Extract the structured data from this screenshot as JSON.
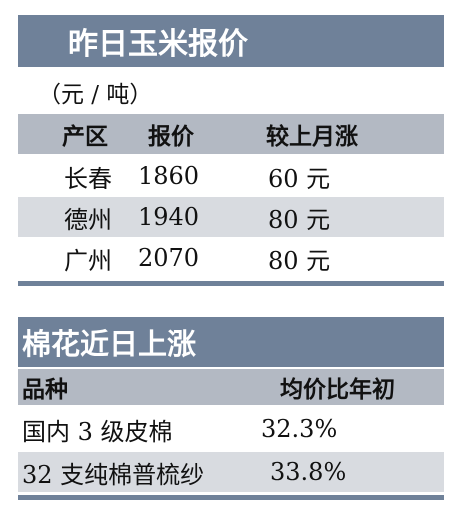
{
  "section1": {
    "title": "昨日玉米报价",
    "unit": "（元 / 吨）",
    "headers": [
      "产区",
      "报价",
      "较上月涨"
    ],
    "rows": [
      {
        "region": "长春",
        "price": "1860",
        "change": "60 元"
      },
      {
        "region": "德州",
        "price": "1940",
        "change": "80 元"
      },
      {
        "region": "广州",
        "price": "2070",
        "change": "80 元"
      }
    ]
  },
  "section2": {
    "title": "棉花近日上涨",
    "headers": [
      "品种",
      "均价比年初"
    ],
    "rows": [
      {
        "variety": "国内 3 级皮棉",
        "change": "32.3%"
      },
      {
        "variety": "32 支纯棉普梳纱",
        "change": "33.8%"
      }
    ]
  },
  "colors": {
    "title_band": "#6f8199",
    "header_band": "#b3b9c3",
    "row_stripe": "#d8dbe0"
  }
}
